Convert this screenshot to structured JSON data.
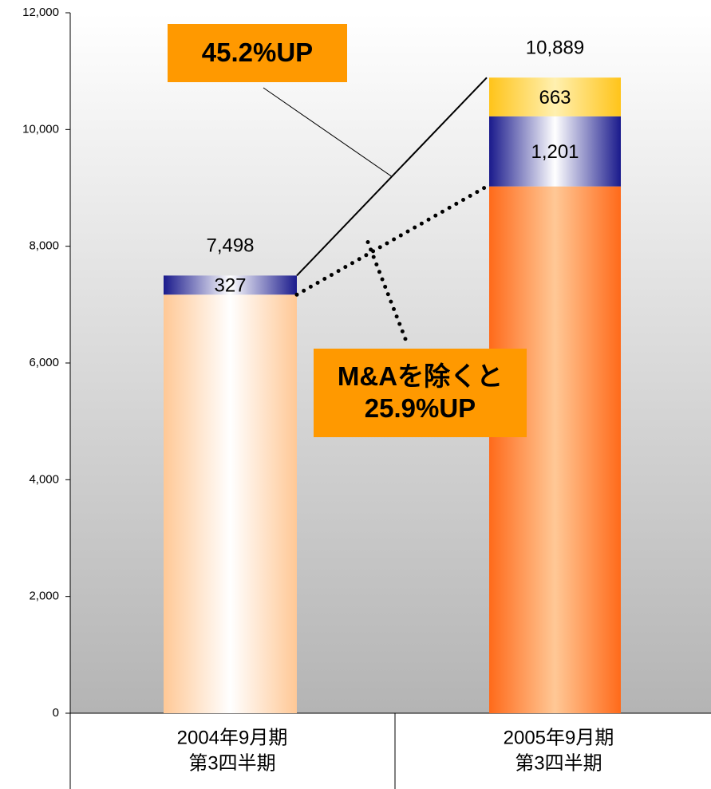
{
  "chart_data": {
    "type": "stacked_bar",
    "categories": [
      [
        "2004年9月期",
        "第3四半期"
      ],
      [
        "2005年9月期",
        "第3四半期"
      ]
    ],
    "series": [
      {
        "values": [
          7171,
          9025
        ],
        "colors": [
          "#ffc896",
          "#ff6a1a"
        ],
        "center_colors": [
          "#ffffff",
          "#ffc896"
        ]
      },
      {
        "values": [
          327,
          1201
        ],
        "value_labels": [
          "327",
          "1,201"
        ],
        "colors": [
          "#1a1a8c",
          "#1a1a8c"
        ],
        "center_colors": [
          "#ffffff",
          "#ffffff"
        ]
      },
      {
        "values": [
          null,
          663
        ],
        "value_labels": [
          null,
          "663"
        ],
        "colors": [
          "#ffc41a",
          "#ffc41a"
        ],
        "center_colors": [
          "#fff0b0",
          "#fff0b0"
        ]
      }
    ],
    "totals": [
      7498,
      10889
    ],
    "total_labels": [
      "7,498",
      "10,889"
    ],
    "ylim": [
      0,
      12000
    ],
    "yticks": [
      0,
      {
        "value": 2000,
        "label": "2,000"
      },
      {
        "value": 4000,
        "label": "4,000"
      },
      {
        "value": 6000,
        "label": "6,000"
      },
      {
        "value": 8000,
        "label": "8,000"
      },
      {
        "value": 10000,
        "label": "10,000"
      },
      {
        "value": 12000,
        "label": "12,000"
      }
    ],
    "annotations": [
      [
        "45.2%UP"
      ],
      [
        "M&Aを除くと",
        "25.9%UP"
      ]
    ],
    "annotation_color": "#ff9900"
  }
}
